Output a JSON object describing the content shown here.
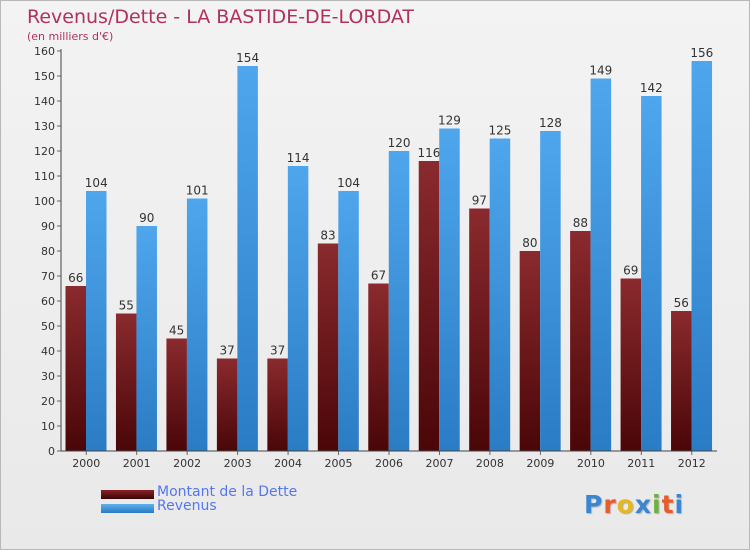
{
  "title": "Revenus/Dette - LA BASTIDE-DE-LORDAT",
  "subtitle": "(en milliers d'€)",
  "logo": {
    "letters": [
      "P",
      "r",
      "o",
      "x",
      "i",
      "t",
      "i"
    ]
  },
  "colors": {
    "dette": "#7a1a1e",
    "revenus": "#3b93dd",
    "label": "#333333",
    "title": "#b03060",
    "legend_text": "#5577ee",
    "logo": [
      "#3a86d0",
      "#e85c2a",
      "#e6b820",
      "#3a86d0",
      "#6cb33e",
      "#e85c2a",
      "#3a86d0"
    ]
  },
  "legend": [
    {
      "label": "Montant de la Dette",
      "color": "#7a1a1e"
    },
    {
      "label": "Revenus",
      "color": "#3b93dd"
    }
  ],
  "chart_data": {
    "type": "bar",
    "title": "Revenus/Dette - LA BASTIDE-DE-LORDAT",
    "subtitle": "(en milliers d'€)",
    "categories": [
      "2000",
      "2001",
      "2002",
      "2003",
      "2004",
      "2005",
      "2006",
      "2007",
      "2008",
      "2009",
      "2010",
      "2011",
      "2012"
    ],
    "series": [
      {
        "name": "Montant de la Dette",
        "values": [
          66,
          55,
          45,
          37,
          37,
          83,
          67,
          116,
          97,
          80,
          88,
          69,
          56
        ]
      },
      {
        "name": "Revenus",
        "values": [
          104,
          90,
          101,
          154,
          114,
          104,
          120,
          129,
          125,
          128,
          149,
          142,
          156
        ]
      }
    ],
    "ylim": [
      0,
      160
    ],
    "yticks": [
      0,
      10,
      20,
      30,
      40,
      50,
      60,
      70,
      80,
      90,
      100,
      110,
      120,
      130,
      140,
      150,
      160
    ],
    "grid": false,
    "legend_position": "bottom-left",
    "data_labels": true
  }
}
